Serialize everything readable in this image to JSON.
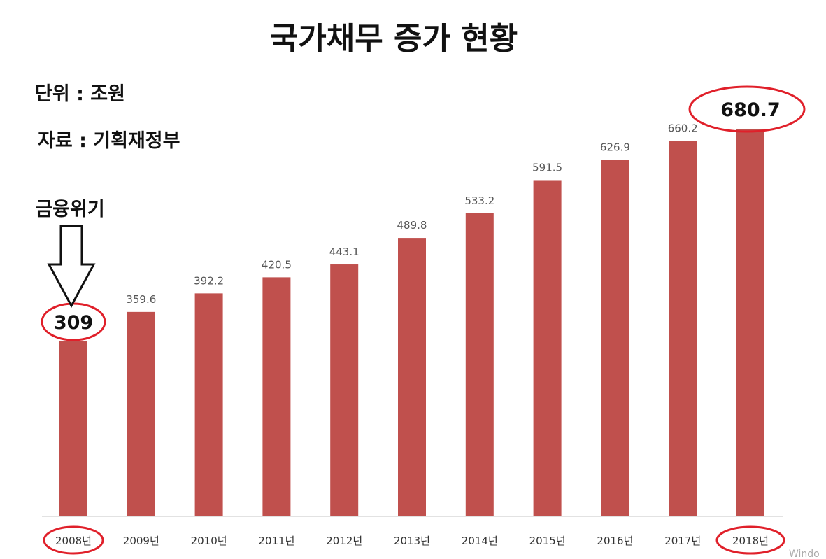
{
  "chart_data": {
    "type": "bar",
    "title": "국가채무 증가 현황",
    "unit_label": "단위 : 조원",
    "source_label": "자료 : 기획재정부",
    "categories": [
      "2008년",
      "2009년",
      "2010년",
      "2011년",
      "2012년",
      "2013년",
      "2014년",
      "2015년",
      "2016년",
      "2017년",
      "2018년"
    ],
    "values": [
      309,
      359.6,
      392.2,
      420.5,
      443.1,
      489.8,
      533.2,
      591.5,
      626.9,
      660.2,
      680.7
    ],
    "value_labels": [
      "309",
      "359.6",
      "392.2",
      "420.5",
      "443.1",
      "489.8",
      "533.2",
      "591.5",
      "626.9",
      "660.2",
      "680.7"
    ],
    "ylim": [
      0,
      680.7
    ],
    "grid": false,
    "bar_color": "#c0504d",
    "highlight_color": "#e0202a",
    "highlighted_indices": [
      0,
      10
    ],
    "annotation": {
      "text": "금융위기",
      "target_index": 0
    }
  },
  "watermark": "Windo"
}
